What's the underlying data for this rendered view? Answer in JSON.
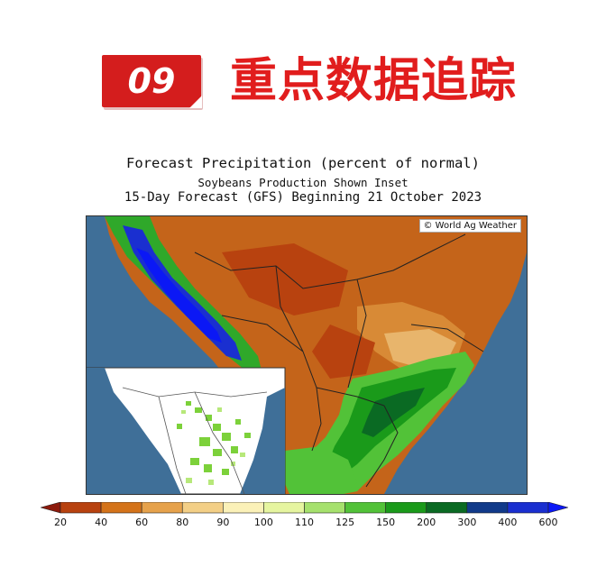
{
  "header": {
    "badge": "09",
    "title": "重点数据追踪"
  },
  "map": {
    "title_line1": "Forecast Precipitation (percent of normal)",
    "title_line2": "Soybeans Production Shown Inset",
    "title_line3": "15-Day Forecast (GFS) Beginning 21 October 2023",
    "credit": "© World Ag Weather",
    "inset": "soybean production areas",
    "colors": {
      "ocean": "#3f6f98",
      "land_dry": "#c4641a",
      "land_wet": "#2fa82a"
    }
  },
  "legend": {
    "ticks": [
      "20",
      "40",
      "60",
      "80",
      "90",
      "100",
      "110",
      "125",
      "150",
      "200",
      "300",
      "400",
      "600"
    ],
    "colors": [
      "#8c1a0c",
      "#b8420f",
      "#d4731a",
      "#e6a24c",
      "#f3cf86",
      "#fbf1b8",
      "#e6f5a0",
      "#a6e16d",
      "#52c238",
      "#1a9a1a",
      "#0a6a23",
      "#113a8a",
      "#1a2fd0",
      "#0b18f5"
    ]
  }
}
